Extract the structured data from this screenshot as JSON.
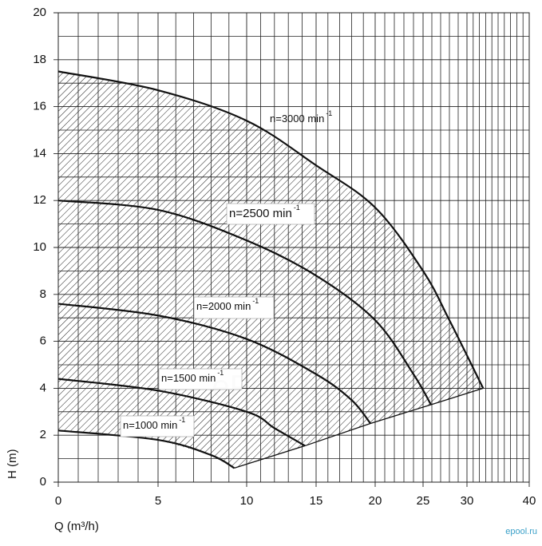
{
  "chart_data": {
    "type": "line",
    "x_label": "Q (m³/h)",
    "y_label": "H (m)",
    "xlim": [
      0,
      40
    ],
    "ylim": [
      0,
      20
    ],
    "xticks": [
      0,
      5,
      10,
      15,
      20,
      25,
      30,
      40
    ],
    "yticks": [
      0,
      2,
      4,
      6,
      8,
      10,
      12,
      14,
      16,
      18,
      20
    ],
    "x_minor_grid": [
      1,
      2,
      3,
      4,
      6,
      7,
      8,
      9,
      11,
      12,
      13,
      14,
      16,
      17,
      18,
      19,
      21,
      22,
      23,
      24,
      26,
      27,
      28,
      29,
      31,
      32,
      33,
      34,
      35,
      36,
      37,
      38,
      39
    ],
    "y_minor_grid": [
      1,
      3,
      5,
      7,
      9,
      11,
      13,
      15,
      17,
      19
    ],
    "grid": true,
    "hatched_area": true,
    "color": "#111111",
    "unit_exponent": "-1",
    "series": [
      {
        "name": "n=3000 min",
        "x": [
          0,
          5,
          10,
          15,
          20,
          25,
          28,
          32.6
        ],
        "values": [
          17.5,
          16.7,
          15.4,
          13.5,
          11.7,
          9.0,
          6.9,
          4.0
        ]
      },
      {
        "name": "n=2500 min",
        "x": [
          0,
          5,
          10,
          15,
          20,
          24,
          25.9
        ],
        "values": [
          12.0,
          11.6,
          10.3,
          8.8,
          6.9,
          4.6,
          3.3
        ]
      },
      {
        "name": "n=2000 min",
        "x": [
          0,
          5,
          10,
          15,
          18,
          19.6
        ],
        "values": [
          7.6,
          7.1,
          6.1,
          4.6,
          3.5,
          2.5
        ]
      },
      {
        "name": "n=1500 min",
        "x": [
          0,
          5,
          10,
          12,
          14.2
        ],
        "values": [
          4.4,
          3.9,
          3.0,
          2.3,
          1.55
        ]
      },
      {
        "name": "n=1000 min",
        "x": [
          0,
          5,
          8,
          9.3
        ],
        "values": [
          2.2,
          1.8,
          1.15,
          0.6
        ]
      },
      {
        "x": [
          9.3,
          14.2,
          19.6,
          25.9,
          32.6
        ],
        "values": [
          0.6,
          1.55,
          2.5,
          3.3,
          4.0
        ]
      }
    ],
    "watermark": "ePool.ru",
    "logo": "epool.ru"
  }
}
